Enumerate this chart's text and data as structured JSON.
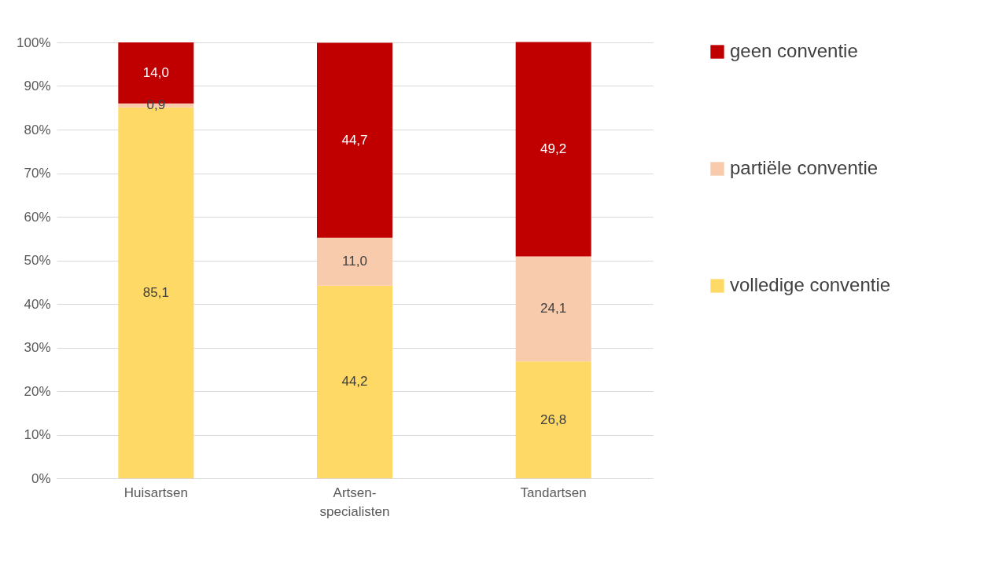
{
  "chart_data": {
    "type": "bar",
    "stacked": true,
    "categories": [
      "Huisartsen",
      "Artsen-specialisten",
      "Tandartsen"
    ],
    "series": [
      {
        "name": "volledige conventie",
        "color": "#ffd966",
        "values": [
          85.1,
          44.2,
          26.8
        ],
        "value_labels": [
          "85,1",
          "44,2",
          "26,8"
        ]
      },
      {
        "name": "partiële conventie",
        "color": "#f8cbad",
        "values": [
          0.9,
          11.0,
          24.1
        ],
        "value_labels": [
          "0,9",
          "11,0",
          "24,1"
        ]
      },
      {
        "name": "geen conventie",
        "color": "#c00000",
        "values": [
          14.0,
          44.7,
          49.2
        ],
        "value_labels": [
          "14,0",
          "44,7",
          "49,2"
        ]
      }
    ],
    "ylim": [
      0,
      100
    ],
    "yticks": [
      {
        "value": 0,
        "label": "0%"
      },
      {
        "value": 10,
        "label": "10%"
      },
      {
        "value": 20,
        "label": "20%"
      },
      {
        "value": 30,
        "label": "30%"
      },
      {
        "value": 40,
        "label": "40%"
      },
      {
        "value": 50,
        "label": "50%"
      },
      {
        "value": 60,
        "label": "60%"
      },
      {
        "value": 70,
        "label": "70%"
      },
      {
        "value": 80,
        "label": "80%"
      },
      {
        "value": 90,
        "label": "90%"
      },
      {
        "value": 100,
        "label": "100%"
      }
    ],
    "grid": "y",
    "legend": "right"
  }
}
